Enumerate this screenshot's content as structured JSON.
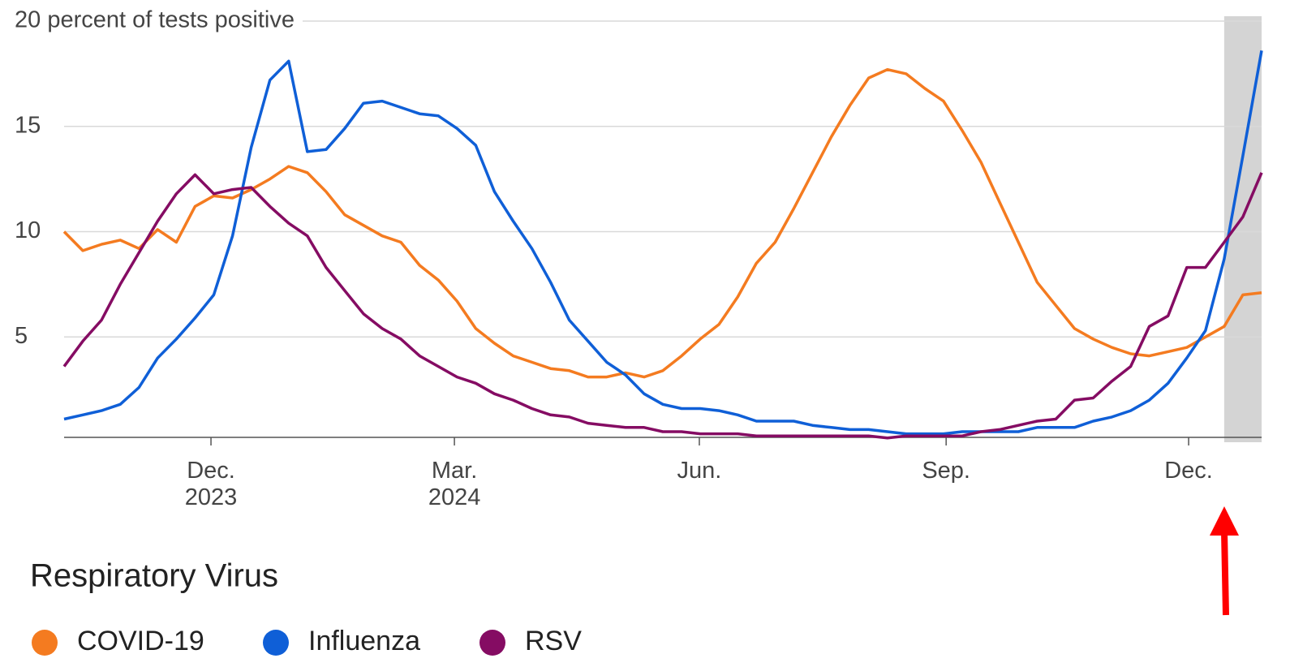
{
  "chart_data": {
    "type": "line",
    "x": [
      0,
      1,
      2,
      3,
      4,
      5,
      6,
      7,
      8,
      9,
      10,
      11,
      12,
      13,
      14,
      15,
      16,
      17,
      18,
      19,
      20,
      21,
      22,
      23,
      24,
      25,
      26,
      27,
      28,
      29,
      30,
      31,
      32,
      33,
      34,
      35,
      36,
      37,
      38,
      39,
      40,
      41,
      42,
      43,
      44,
      45,
      46,
      47,
      48,
      49,
      50,
      51,
      52,
      53,
      54,
      55,
      56,
      57,
      58,
      59,
      60,
      61,
      62,
      63,
      64
    ],
    "xlim": [
      0,
      64
    ],
    "xticks": [
      {
        "value": 7.85,
        "label": "Dec.\n2023"
      },
      {
        "value": 20.86,
        "label": "Mar.\n2024"
      },
      {
        "value": 33.95,
        "label": "Jun."
      },
      {
        "value": 47.14,
        "label": "Sep."
      },
      {
        "value": 60.1,
        "label": "Dec."
      }
    ],
    "ylim": [
      0,
      20
    ],
    "yticks": [
      5,
      10,
      15,
      {
        "value": 20,
        "label": "20 percent of tests positive"
      }
    ],
    "grid": true,
    "shaded_x": [
      62,
      64
    ],
    "legend_title": "Respiratory Virus",
    "legend": "bottom-left",
    "series": [
      {
        "name": "COVID-19",
        "color": "#f47b20",
        "values": [
          10.0,
          9.1,
          9.4,
          9.6,
          9.2,
          10.1,
          9.5,
          11.2,
          11.7,
          11.6,
          12.0,
          12.5,
          13.1,
          12.8,
          11.9,
          10.8,
          10.3,
          9.8,
          9.5,
          8.4,
          7.7,
          6.7,
          5.4,
          4.7,
          4.1,
          3.8,
          3.5,
          3.4,
          3.1,
          3.1,
          3.3,
          3.1,
          3.4,
          4.1,
          4.9,
          5.6,
          6.9,
          8.5,
          9.5,
          11.1,
          12.8,
          14.5,
          16.0,
          17.3,
          17.7,
          17.5,
          16.8,
          16.2,
          14.8,
          13.3,
          11.4,
          9.5,
          7.6,
          6.5,
          5.4,
          4.9,
          4.5,
          4.2,
          4.1,
          4.3,
          4.5,
          5.0,
          5.5,
          7.0,
          7.1
        ]
      },
      {
        "name": "Influenza",
        "color": "#0f5fd7",
        "values": [
          1.1,
          1.3,
          1.5,
          1.8,
          2.6,
          4.0,
          4.9,
          5.9,
          7.0,
          9.8,
          14.0,
          17.2,
          18.1,
          13.8,
          13.9,
          14.9,
          16.1,
          16.2,
          15.9,
          15.6,
          15.5,
          14.9,
          14.1,
          11.9,
          10.5,
          9.2,
          7.6,
          5.8,
          4.8,
          3.8,
          3.2,
          2.3,
          1.8,
          1.6,
          1.6,
          1.5,
          1.3,
          1.0,
          1.0,
          1.0,
          0.8,
          0.7,
          0.6,
          0.6,
          0.5,
          0.4,
          0.4,
          0.4,
          0.5,
          0.5,
          0.5,
          0.5,
          0.7,
          0.7,
          0.7,
          1.0,
          1.2,
          1.5,
          2.0,
          2.8,
          4.0,
          5.3,
          8.7,
          13.6,
          18.6
        ]
      },
      {
        "name": "RSV",
        "color": "#850c63",
        "values": [
          3.6,
          4.8,
          5.8,
          7.5,
          9.0,
          10.5,
          11.8,
          12.7,
          11.8,
          12.0,
          12.1,
          11.2,
          10.4,
          9.8,
          8.3,
          7.2,
          6.1,
          5.4,
          4.9,
          4.1,
          3.6,
          3.1,
          2.8,
          2.3,
          2.0,
          1.6,
          1.3,
          1.2,
          0.9,
          0.8,
          0.7,
          0.7,
          0.5,
          0.5,
          0.4,
          0.4,
          0.4,
          0.3,
          0.3,
          0.3,
          0.3,
          0.3,
          0.3,
          0.3,
          0.2,
          0.3,
          0.3,
          0.3,
          0.3,
          0.5,
          0.6,
          0.8,
          1.0,
          1.1,
          2.0,
          2.1,
          2.9,
          3.6,
          5.5,
          6.0,
          8.3,
          8.3,
          9.5,
          10.7,
          12.8
        ]
      }
    ]
  }
}
